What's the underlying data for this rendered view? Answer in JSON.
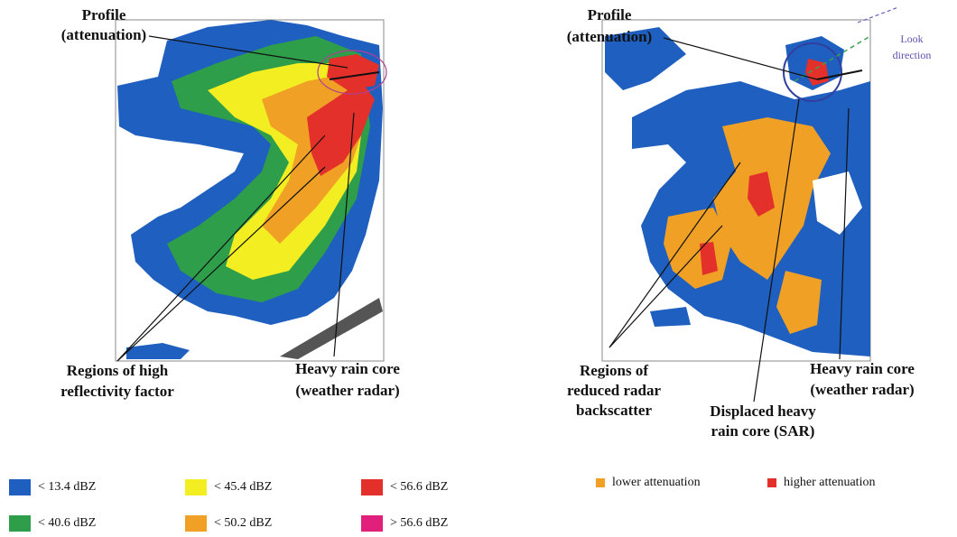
{
  "left_panel": {
    "annotations": [
      {
        "lines": [
          "Profile",
          "(attenuation)"
        ]
      },
      {
        "lines": [
          "Regions of high",
          "reflectivity factor"
        ]
      },
      {
        "lines": [
          "Heavy rain core",
          "(weather radar)"
        ]
      }
    ],
    "legend": [
      {
        "label": "< 13.4  dBZ",
        "color": "#1f5fbf"
      },
      {
        "label": "< 40.6 dBZ",
        "color": "#2e9e4a"
      },
      {
        "label": "< 45.4  dBZ",
        "color": "#f2ee22"
      },
      {
        "label": "< 50.2 dBZ",
        "color": "#f0a024"
      },
      {
        "label": "< 56.6 dBZ",
        "color": "#e3302a"
      },
      {
        "label": "> 56.6 dBZ",
        "color": "#e0207a"
      }
    ]
  },
  "right_panel": {
    "annotations": [
      {
        "lines": [
          "Profile",
          "(attenuation)"
        ]
      },
      {
        "lines": [
          "Look",
          "direction"
        ]
      },
      {
        "lines": [
          "Regions of",
          "reduced radar",
          "backscatter"
        ]
      },
      {
        "lines": [
          "Displaced heavy",
          "rain core (SAR)"
        ]
      },
      {
        "lines": [
          "Heavy rain core",
          "(weather radar)"
        ]
      }
    ],
    "legend": [
      {
        "label": "lower attenuation",
        "color": "#f0a024"
      },
      {
        "label": "higher attenuation",
        "color": "#e3302a"
      }
    ]
  }
}
